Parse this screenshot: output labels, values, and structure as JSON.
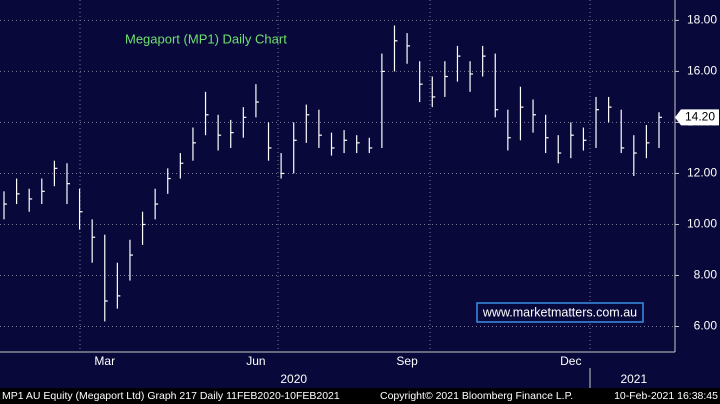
{
  "chart_data": {
    "type": "hlc",
    "title": "Megaport (MP1) Daily Chart",
    "watermark": "www.marketmatters.com.au",
    "categories": [
      null,
      null,
      null,
      null,
      null,
      null,
      null,
      null,
      "Mar",
      null,
      null,
      null,
      null,
      null,
      null,
      null,
      null,
      null,
      null,
      null,
      "Jun",
      null,
      null,
      null,
      null,
      null,
      null,
      null,
      null,
      null,
      null,
      null,
      "Sep",
      null,
      null,
      null,
      null,
      null,
      null,
      null,
      null,
      null,
      null,
      null,
      null,
      "Dec",
      null,
      null,
      null,
      null,
      null,
      null,
      null
    ],
    "year_labels": [
      null,
      null,
      null,
      null,
      null,
      null,
      null,
      null,
      null,
      null,
      null,
      null,
      null,
      null,
      null,
      null,
      null,
      null,
      null,
      null,
      null,
      null,
      null,
      "2020",
      null,
      null,
      null,
      null,
      null,
      null,
      null,
      null,
      null,
      null,
      null,
      null,
      null,
      null,
      null,
      null,
      null,
      null,
      null,
      null,
      null,
      null,
      null,
      null,
      null,
      null,
      "2021",
      null,
      null
    ],
    "color": "#ffffff",
    "high": [
      11.3,
      11.8,
      11.4,
      11.8,
      12.5,
      12.4,
      11.4,
      10.2,
      9.6,
      8.5,
      9.4,
      10.5,
      11.4,
      12.2,
      12.8,
      13.8,
      15.2,
      14.3,
      14.1,
      14.6,
      15.5,
      14.0,
      12.8,
      14.0,
      14.7,
      14.5,
      13.6,
      13.7,
      13.5,
      13.4,
      16.7,
      17.8,
      17.5,
      16.4,
      15.8,
      16.4,
      17.0,
      16.4,
      17.0,
      16.7,
      14.5,
      15.4,
      14.9,
      14.3,
      13.5,
      14.0,
      13.8,
      15.0,
      15.0,
      14.5,
      13.5,
      13.9,
      14.4
    ],
    "low": [
      10.2,
      10.8,
      10.5,
      10.8,
      11.5,
      10.8,
      9.8,
      8.5,
      6.2,
      6.7,
      7.8,
      9.2,
      10.2,
      11.2,
      11.8,
      12.5,
      13.5,
      12.9,
      13.0,
      13.4,
      14.2,
      12.5,
      11.8,
      12.0,
      13.2,
      13.0,
      12.7,
      12.8,
      12.8,
      12.8,
      13.0,
      16.0,
      16.3,
      14.8,
      14.6,
      15.0,
      15.6,
      15.2,
      15.8,
      14.2,
      12.9,
      13.3,
      13.6,
      12.8,
      12.4,
      12.6,
      12.9,
      13.0,
      14.0,
      12.8,
      11.9,
      12.6,
      13.0
    ],
    "close": [
      10.8,
      11.2,
      11.0,
      11.3,
      12.2,
      11.6,
      10.5,
      9.5,
      7.0,
      7.2,
      8.8,
      10.0,
      10.8,
      11.8,
      12.4,
      13.2,
      14.3,
      13.5,
      13.6,
      14.2,
      14.8,
      13.0,
      12.0,
      13.3,
      14.3,
      13.5,
      13.0,
      13.3,
      13.2,
      13.0,
      16.0,
      17.2,
      17.0,
      15.5,
      15.0,
      15.8,
      16.6,
      15.9,
      16.6,
      14.5,
      13.4,
      14.6,
      14.3,
      13.4,
      12.8,
      13.5,
      13.3,
      14.5,
      14.6,
      13.0,
      12.8,
      13.2,
      14.2
    ],
    "last_value_label": "14.20",
    "ylim": [
      5,
      18.8
    ],
    "yticks": [
      {
        "value": 6,
        "label": "6.00"
      },
      {
        "value": 8,
        "label": "8.00"
      },
      {
        "value": 10,
        "label": "10.00"
      },
      {
        "value": 12,
        "label": "12.00"
      },
      {
        "value": 14,
        "label": "14.00"
      },
      {
        "value": 16,
        "label": "16.00"
      },
      {
        "value": 18,
        "label": "18.00"
      }
    ],
    "grid": true,
    "footer": {
      "left": "MP1 AU Equity (Megaport Ltd) Graph 217  Daily 11FEB2020-10FEB2021",
      "center": "Copyright© 2021 Bloomberg Finance L.P.",
      "right": "10-Feb-2021 16:38:45"
    }
  }
}
